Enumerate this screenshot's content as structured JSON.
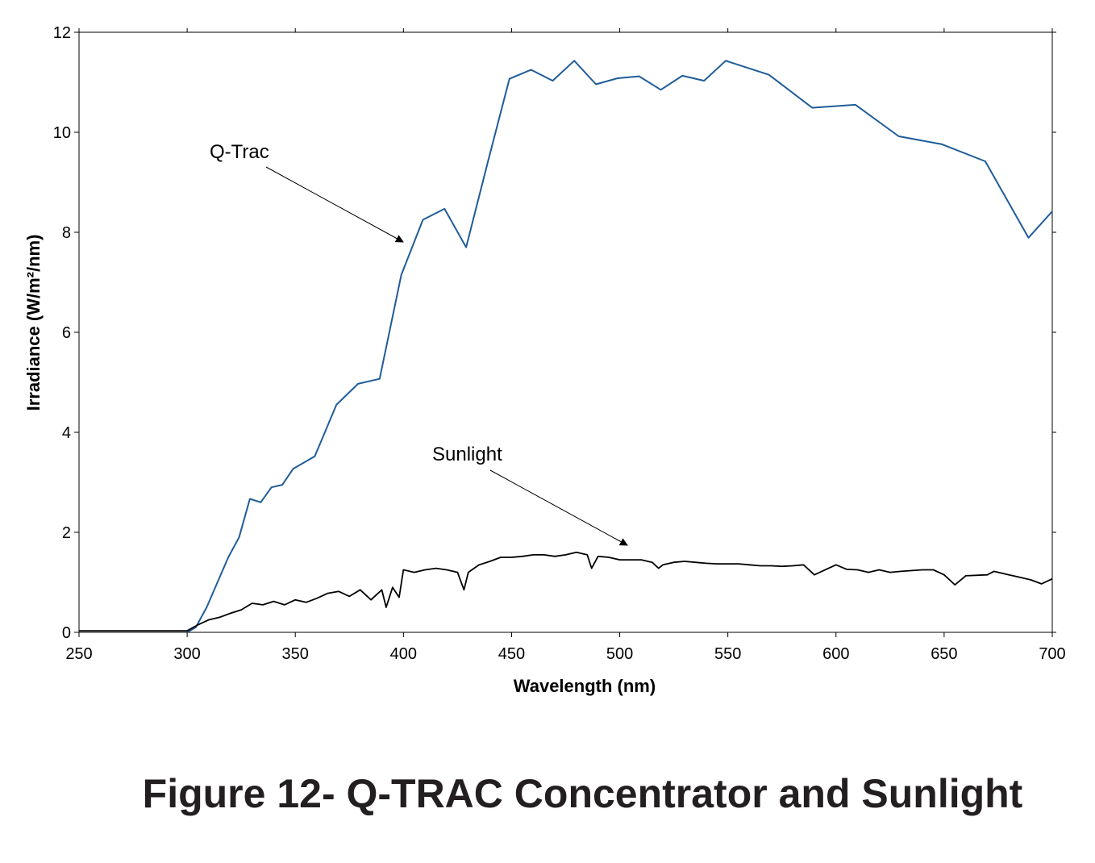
{
  "caption": "Figure 12- Q-TRAC Concentrator and Sunlight",
  "chart_data": {
    "type": "line",
    "title": "",
    "xlabel": "Wavelength (nm)",
    "ylabel": "Irradiance (W/m²/nm)",
    "xlim": [
      250,
      700
    ],
    "ylim": [
      0,
      12
    ],
    "xticks": [
      250,
      300,
      350,
      400,
      450,
      500,
      550,
      600,
      650,
      700
    ],
    "yticks": [
      0,
      2,
      4,
      6,
      8,
      10,
      12
    ],
    "grid": false,
    "annotations": [
      {
        "text": "Q-Trac",
        "series": "Q-Trac"
      },
      {
        "text": "Sunlight",
        "series": "Sunlight"
      }
    ],
    "series": [
      {
        "name": "Q-Trac",
        "color": "#1f5c99",
        "x": [
          300,
          304,
          309,
          314,
          319,
          324,
          329,
          334,
          339,
          344,
          349,
          359,
          369,
          379,
          389,
          399,
          409,
          419,
          429,
          439,
          449,
          459,
          469,
          479,
          489,
          499,
          509,
          519,
          529,
          539,
          549,
          569,
          589,
          609,
          629,
          649,
          669,
          689,
          700
        ],
        "y": [
          0,
          0.1,
          0.5,
          1.0,
          1.5,
          1.9,
          2.67,
          2.6,
          2.9,
          2.95,
          3.27,
          3.52,
          4.55,
          4.97,
          5.07,
          7.15,
          8.25,
          8.47,
          7.7,
          9.4,
          11.07,
          11.25,
          11.03,
          11.43,
          10.96,
          11.08,
          11.12,
          10.85,
          11.13,
          11.03,
          11.43,
          11.15,
          10.49,
          10.55,
          9.92,
          9.76,
          9.42,
          7.89,
          8.42
        ]
      },
      {
        "name": "Sunlight",
        "color": "#000000",
        "x": [
          250,
          300,
          305,
          310,
          315,
          320,
          325,
          330,
          335,
          340,
          345,
          350,
          355,
          360,
          365,
          370,
          375,
          380,
          385,
          390,
          392,
          395,
          398,
          400,
          405,
          410,
          415,
          420,
          425,
          428,
          430,
          435,
          440,
          445,
          450,
          455,
          460,
          465,
          470,
          475,
          480,
          485,
          487,
          490,
          495,
          500,
          505,
          510,
          515,
          518,
          520,
          525,
          530,
          535,
          540,
          545,
          550,
          555,
          560,
          565,
          570,
          575,
          580,
          585,
          590,
          600,
          605,
          610,
          615,
          620,
          625,
          630,
          640,
          645,
          650,
          655,
          660,
          670,
          673,
          680,
          690,
          695,
          700
        ],
        "y": [
          0.03,
          0.03,
          0.15,
          0.25,
          0.3,
          0.38,
          0.45,
          0.58,
          0.55,
          0.62,
          0.55,
          0.65,
          0.6,
          0.68,
          0.78,
          0.82,
          0.72,
          0.85,
          0.65,
          0.85,
          0.5,
          0.9,
          0.7,
          1.25,
          1.2,
          1.25,
          1.28,
          1.25,
          1.2,
          0.85,
          1.2,
          1.35,
          1.42,
          1.5,
          1.5,
          1.52,
          1.55,
          1.55,
          1.52,
          1.55,
          1.6,
          1.55,
          1.28,
          1.52,
          1.5,
          1.45,
          1.45,
          1.45,
          1.4,
          1.28,
          1.35,
          1.4,
          1.42,
          1.4,
          1.38,
          1.37,
          1.37,
          1.37,
          1.35,
          1.33,
          1.33,
          1.32,
          1.33,
          1.35,
          1.15,
          1.35,
          1.26,
          1.25,
          1.2,
          1.25,
          1.2,
          1.22,
          1.25,
          1.25,
          1.15,
          0.95,
          1.13,
          1.15,
          1.22,
          1.15,
          1.05,
          0.97,
          1.07
        ]
      }
    ]
  }
}
